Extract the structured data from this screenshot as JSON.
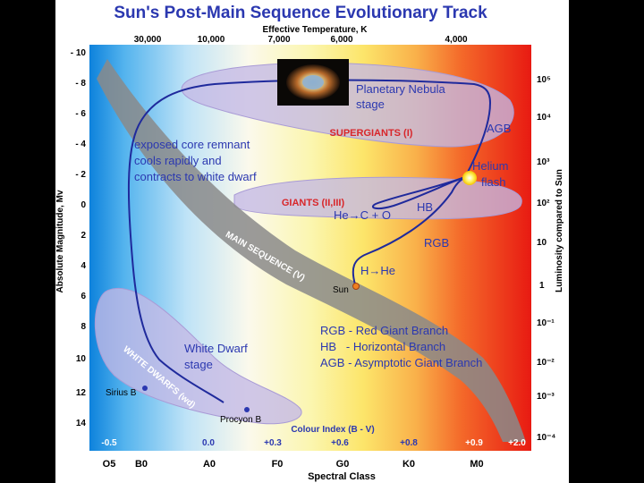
{
  "title": "Sun's Post-Main Sequence Evolutionary Track",
  "top_axis": {
    "label": "Effective Temperature, K",
    "ticks": [
      "30,000",
      "10,000",
      "7,000",
      "6,000",
      "4,000"
    ]
  },
  "left_axis": {
    "label": "Absolute Magnitude, Mv",
    "ticks": [
      "- 10",
      "- 8",
      "- 6",
      "- 4",
      "- 2",
      "0",
      "2",
      "4",
      "6",
      "8",
      "10",
      "12",
      "14"
    ]
  },
  "right_axis": {
    "label": "Luminosity compared to Sun",
    "ticks": [
      "10⁵",
      "10⁴",
      "10³",
      "10²",
      "10",
      "1",
      "10⁻¹",
      "10⁻²",
      "10⁻³",
      "10⁻⁴"
    ]
  },
  "colour_index": {
    "label": "Colour Index (B - V)",
    "ticks": [
      "-0.5",
      "0.0",
      "+0.3",
      "+0.6",
      "+0.8",
      "+0.9",
      "+2.0"
    ]
  },
  "spectral": {
    "label": "Spectral Class",
    "ticks": [
      "O5",
      "B0",
      "A0",
      "F0",
      "G0",
      "K0",
      "M0"
    ]
  },
  "regions": {
    "supergiants": "SUPERGIANTS (I)",
    "giants": "GIANTS (II,III)",
    "main_sequence": "MAIN SEQUENCE (V)",
    "white_dwarfs": "WHITE DWARFS (wd)"
  },
  "annotations": {
    "planetary_nebula_1": "Planetary Nebula",
    "planetary_nebula_2": "stage",
    "core_1": "exposed core remnant",
    "core_2": "cools rapidly and",
    "core_3": "contracts to white dwarf",
    "agb": "AGB",
    "helium_1": "Helium",
    "helium_2": "flash",
    "hb": "HB",
    "he_c_o": "He→C + O",
    "rgb": "RGB",
    "h_he": "H→He",
    "sun": "Sun",
    "white_dwarf_1": "White Dwarf",
    "white_dwarf_2": "stage",
    "sirius": "Sirius B",
    "procyon": "Procyon B"
  },
  "legend": [
    "RGB - Red Giant Branch",
    "HB   - Horizontal Branch",
    "AGB - Asymptotic Giant Branch"
  ],
  "colors": {
    "track": "#1f2a9c",
    "label_blue": "#2b38b0",
    "label_red": "#d8262a"
  }
}
